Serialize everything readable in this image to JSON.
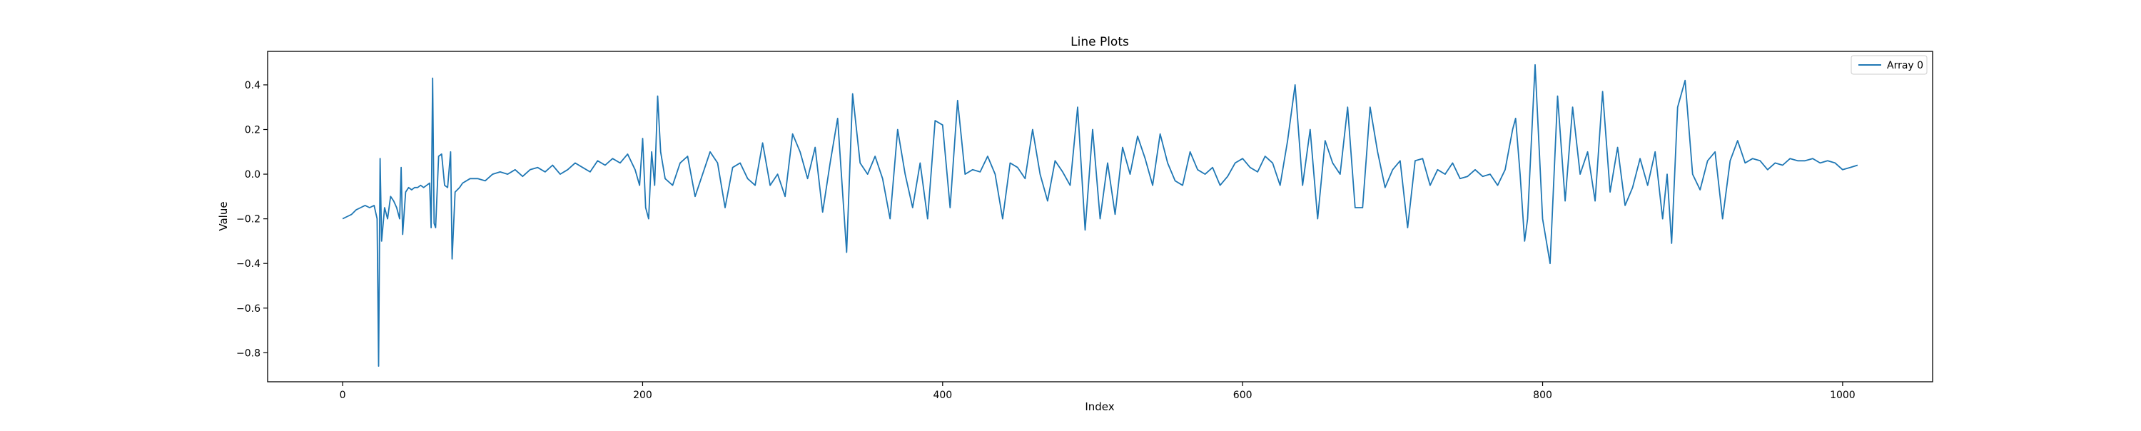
{
  "chart_data": {
    "type": "line",
    "title": "Line Plots",
    "xlabel": "Index",
    "ylabel": "Value",
    "xlim": [
      -50,
      1060
    ],
    "ylim": [
      -0.93,
      0.55
    ],
    "xticks": [
      0,
      200,
      400,
      600,
      800,
      1000
    ],
    "yticks": [
      -0.8,
      -0.6,
      -0.4,
      -0.2,
      0.0,
      0.2,
      0.4
    ],
    "ytick_labels": [
      "−0.8",
      "−0.6",
      "−0.4",
      "−0.2",
      "0.0",
      "0.2",
      "0.4"
    ],
    "legend_position": "top-right",
    "grid": false,
    "color": "#1f77b4",
    "series": [
      {
        "name": "Array 0",
        "x": [
          0,
          3,
          6,
          9,
          12,
          15,
          18,
          21,
          23,
          24,
          25,
          26,
          28,
          30,
          32,
          34,
          36,
          38,
          39,
          40,
          42,
          44,
          46,
          48,
          50,
          52,
          54,
          56,
          58,
          59,
          60,
          61,
          62,
          64,
          66,
          68,
          70,
          72,
          73,
          75,
          78,
          80,
          85,
          90,
          95,
          100,
          105,
          110,
          115,
          120,
          125,
          130,
          135,
          140,
          145,
          150,
          155,
          160,
          165,
          170,
          175,
          180,
          185,
          190,
          195,
          198,
          200,
          202,
          204,
          206,
          208,
          210,
          212,
          215,
          220,
          225,
          230,
          235,
          240,
          245,
          250,
          255,
          260,
          265,
          270,
          275,
          280,
          285,
          290,
          295,
          300,
          305,
          310,
          315,
          320,
          325,
          330,
          333,
          336,
          340,
          345,
          350,
          355,
          360,
          365,
          370,
          375,
          380,
          385,
          390,
          395,
          400,
          405,
          410,
          415,
          420,
          425,
          430,
          435,
          440,
          445,
          450,
          455,
          460,
          465,
          470,
          475,
          480,
          485,
          490,
          495,
          500,
          505,
          510,
          515,
          520,
          525,
          530,
          535,
          540,
          545,
          550,
          555,
          560,
          565,
          570,
          575,
          580,
          585,
          590,
          595,
          600,
          605,
          610,
          615,
          620,
          625,
          630,
          635,
          640,
          645,
          650,
          655,
          660,
          665,
          670,
          675,
          680,
          685,
          690,
          695,
          700,
          705,
          710,
          715,
          720,
          725,
          730,
          735,
          740,
          745,
          750,
          755,
          760,
          765,
          770,
          775,
          780,
          782,
          785,
          788,
          790,
          795,
          800,
          805,
          810,
          815,
          820,
          825,
          830,
          835,
          840,
          845,
          850,
          855,
          860,
          865,
          870,
          875,
          880,
          883,
          886,
          890,
          895,
          900,
          905,
          910,
          915,
          920,
          925,
          930,
          935,
          940,
          945,
          950,
          955,
          960,
          965,
          970,
          975,
          980,
          985,
          990,
          995,
          1000,
          1005,
          1010
        ],
        "values": [
          -0.2,
          -0.19,
          -0.18,
          -0.16,
          -0.15,
          -0.14,
          -0.15,
          -0.14,
          -0.2,
          -0.86,
          0.07,
          -0.3,
          -0.15,
          -0.2,
          -0.1,
          -0.12,
          -0.15,
          -0.2,
          0.03,
          -0.27,
          -0.08,
          -0.06,
          -0.07,
          -0.06,
          -0.06,
          -0.05,
          -0.06,
          -0.05,
          -0.04,
          -0.24,
          0.43,
          -0.22,
          -0.24,
          0.08,
          0.09,
          -0.05,
          -0.06,
          0.1,
          -0.38,
          -0.08,
          -0.06,
          -0.04,
          -0.02,
          -0.02,
          -0.03,
          0.0,
          0.01,
          0.0,
          0.02,
          -0.01,
          0.02,
          0.03,
          0.01,
          0.04,
          0.0,
          0.02,
          0.05,
          0.03,
          0.01,
          0.06,
          0.04,
          0.07,
          0.05,
          0.09,
          0.02,
          -0.05,
          0.16,
          -0.15,
          -0.2,
          0.1,
          -0.05,
          0.35,
          0.1,
          -0.02,
          -0.05,
          0.05,
          0.08,
          -0.1,
          0.0,
          0.1,
          0.05,
          -0.15,
          0.03,
          0.05,
          -0.02,
          -0.05,
          0.14,
          -0.05,
          0.0,
          -0.1,
          0.18,
          0.1,
          -0.02,
          0.12,
          -0.17,
          0.05,
          0.25,
          -0.05,
          -0.35,
          0.36,
          0.05,
          0.0,
          0.08,
          -0.02,
          -0.2,
          0.2,
          0.0,
          -0.15,
          0.05,
          -0.2,
          0.24,
          0.22,
          -0.15,
          0.33,
          0.0,
          0.02,
          0.01,
          0.08,
          0.0,
          -0.2,
          0.05,
          0.03,
          -0.02,
          0.2,
          0.0,
          -0.12,
          0.06,
          0.01,
          -0.05,
          0.3,
          -0.25,
          0.2,
          -0.2,
          0.05,
          -0.18,
          0.12,
          0.0,
          0.17,
          0.07,
          -0.05,
          0.18,
          0.05,
          -0.03,
          -0.05,
          0.1,
          0.02,
          0.0,
          0.03,
          -0.05,
          -0.01,
          0.05,
          0.07,
          0.03,
          0.01,
          0.08,
          0.05,
          -0.05,
          0.15,
          0.4,
          -0.05,
          0.2,
          -0.2,
          0.15,
          0.05,
          0.0,
          0.3,
          -0.15,
          -0.15,
          0.3,
          0.1,
          -0.06,
          0.02,
          0.06,
          -0.24,
          0.06,
          0.07,
          -0.05,
          0.02,
          0.0,
          0.05,
          -0.02,
          -0.01,
          0.02,
          -0.01,
          0.0,
          -0.05,
          0.02,
          0.2,
          0.25,
          0.0,
          -0.3,
          -0.2,
          0.49,
          -0.2,
          -0.4,
          0.35,
          -0.12,
          0.3,
          0.0,
          0.1,
          -0.12,
          0.37,
          -0.08,
          0.12,
          -0.14,
          -0.06,
          0.07,
          -0.05,
          0.1,
          -0.2,
          0.0,
          -0.31,
          0.3,
          0.42,
          0.0,
          -0.07,
          0.06,
          0.1,
          -0.2,
          0.06,
          0.15,
          0.05,
          0.07,
          0.06,
          0.02,
          0.05,
          0.04,
          0.07,
          0.06,
          0.06,
          0.07,
          0.05,
          0.06,
          0.05,
          0.02,
          0.03,
          0.04
        ]
      }
    ]
  }
}
